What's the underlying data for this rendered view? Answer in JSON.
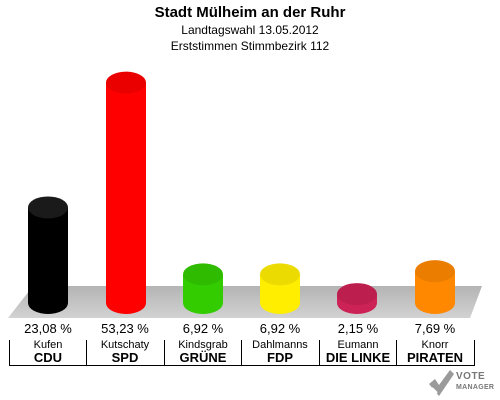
{
  "chart_data": {
    "type": "bar",
    "title": "Stadt Mülheim an der Ruhr",
    "subtitle_1": "Landtagswahl 13.05.2012",
    "subtitle_2": "Erststimmen Stimmbezirk 112",
    "ylim": [
      0,
      55
    ],
    "grid": false,
    "items": [
      {
        "candidate": "Kufen",
        "party": "CDU",
        "value": 23.08,
        "label": "23,08 %",
        "color": "#000000"
      },
      {
        "candidate": "Kutschaty",
        "party": "SPD",
        "value": 53.23,
        "label": "53,23 %",
        "color": "#ff0000"
      },
      {
        "candidate": "Kindsgrab",
        "party": "GRÜNE",
        "value": 6.92,
        "label": "6,92 %",
        "color": "#33cc00"
      },
      {
        "candidate": "Dahlmanns",
        "party": "FDP",
        "value": 6.92,
        "label": "6,92 %",
        "color": "#ffee00"
      },
      {
        "candidate": "Eumann",
        "party": "DIE LINKE",
        "value": 2.15,
        "label": "2,15 %",
        "color": "#cc2255"
      },
      {
        "candidate": "Knorr",
        "party": "PIRATEN",
        "value": 7.69,
        "label": "7,69 %",
        "color": "#ff8800"
      }
    ]
  },
  "logo": {
    "line1": "VOTE",
    "line2": "MANAGER"
  }
}
